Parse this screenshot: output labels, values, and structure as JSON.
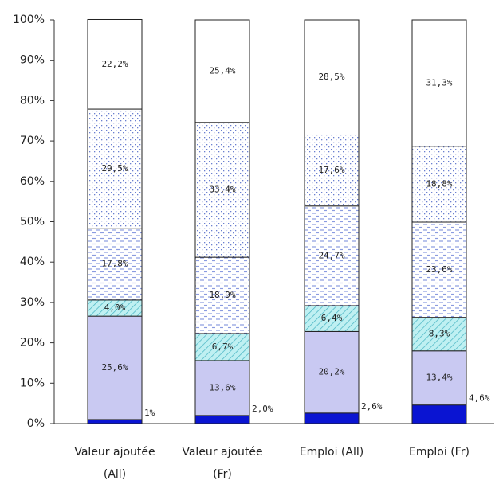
{
  "chart_data": {
    "type": "stacked_bar",
    "categories": [
      "Valeur ajoutée (All)",
      "Valeur ajoutée (Fr)",
      "Emploi (All)",
      "Emploi (Fr)"
    ],
    "ylim": [
      0,
      100
    ],
    "yticks": [
      {
        "value": 0,
        "label": "0%"
      },
      {
        "value": 10,
        "label": "10%"
      },
      {
        "value": 20,
        "label": "20%"
      },
      {
        "value": 30,
        "label": "30%"
      },
      {
        "value": 40,
        "label": "40%"
      },
      {
        "value": 50,
        "label": "50%"
      },
      {
        "value": 60,
        "label": "60%"
      },
      {
        "value": 70,
        "label": "70%"
      },
      {
        "value": 80,
        "label": "80%"
      },
      {
        "value": 90,
        "label": "90%"
      },
      {
        "value": 100,
        "label": "100%"
      }
    ],
    "series": [
      {
        "color": "#0a14d2",
        "values": [
          1,
          2.0,
          2.6,
          4.6
        ],
        "value_labels": [
          "1%",
          "2,0%",
          "2,6%",
          "4,6%"
        ],
        "label_position": "right"
      },
      {
        "color": "#c9c9f2",
        "values": [
          25.6,
          13.6,
          20.2,
          13.4
        ],
        "value_labels": [
          "25,6%",
          "13,6%",
          "20,2%",
          "13,4%"
        ]
      },
      {
        "color": "#bff0f2",
        "pattern": "hatch",
        "values": [
          4.0,
          6.7,
          6.4,
          8.3
        ],
        "value_labels": [
          "4,0%",
          "6,7%",
          "6,4%",
          "8,3%"
        ]
      },
      {
        "color": "#ffffff",
        "pattern": "dashes",
        "values": [
          17.8,
          18.9,
          24.7,
          23.6
        ],
        "value_labels": [
          "17,8%",
          "18,9%",
          "24,7%",
          "23,6%"
        ]
      },
      {
        "color": "#ffffff",
        "pattern": "dots",
        "values": [
          29.5,
          33.4,
          17.6,
          18.8
        ],
        "value_labels": [
          "29,5%",
          "33,4%",
          "17,6%",
          "18,8%"
        ]
      },
      {
        "color": "#ffffff",
        "values": [
          22.2,
          25.4,
          28.5,
          31.3
        ],
        "value_labels": [
          "22,2%",
          "25,4%",
          "28,5%",
          "31,3%"
        ]
      }
    ]
  }
}
